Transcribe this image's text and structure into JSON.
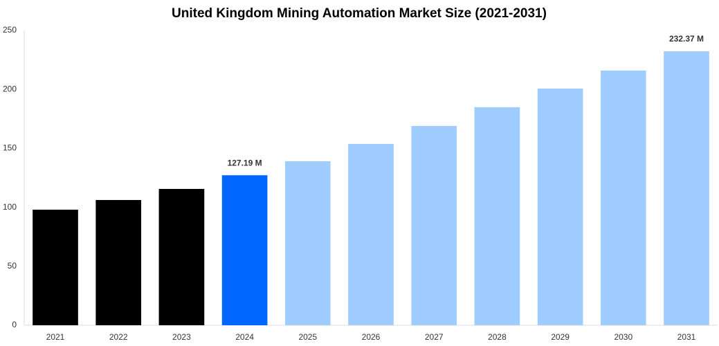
{
  "chart_data": {
    "type": "bar",
    "title": "United Kingdom Mining Automation Market Size (2021-2031)",
    "categories": [
      "2021",
      "2022",
      "2023",
      "2024",
      "2025",
      "2026",
      "2027",
      "2028",
      "2029",
      "2030",
      "2031"
    ],
    "values": [
      98,
      106.2,
      115.6,
      127.19,
      139.1,
      153.8,
      169,
      184.9,
      200.7,
      216,
      232.37
    ],
    "value_labels": [
      null,
      null,
      null,
      "127.19 M",
      null,
      null,
      null,
      null,
      null,
      null,
      "232.37 M"
    ],
    "colors": [
      "#000000",
      "#000000",
      "#000000",
      "#0066ff",
      "#a0cdff",
      "#a0cdff",
      "#a0cdff",
      "#a0cdff",
      "#a0cdff",
      "#a0cdff",
      "#a0cdff"
    ],
    "ylim": [
      0,
      250
    ],
    "yticks": [
      0,
      50,
      100,
      150,
      200,
      250
    ],
    "grid": false
  }
}
